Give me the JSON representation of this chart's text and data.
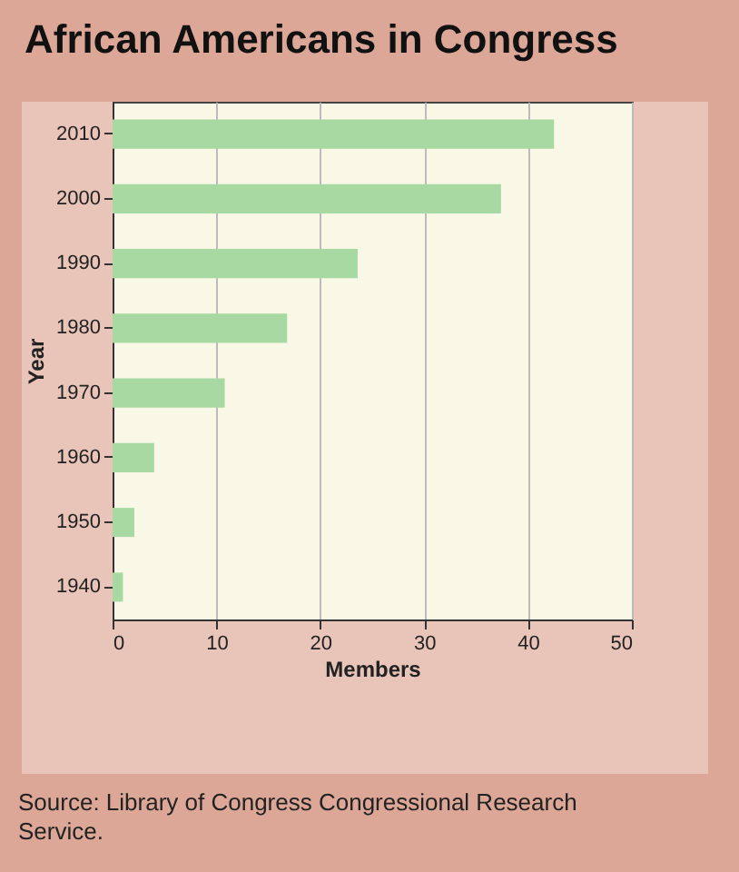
{
  "chart_data": {
    "type": "bar",
    "title": "African Americans in Congress",
    "orientation": "horizontal",
    "categories": [
      "2010",
      "2000",
      "1990",
      "1980",
      "1970",
      "1960",
      "1950",
      "1940"
    ],
    "values": [
      42.5,
      37.4,
      23.6,
      16.8,
      10.8,
      4,
      2.1,
      1
    ],
    "color": "#a9d9a2",
    "xlim": [
      0,
      50
    ],
    "xticks": [
      0,
      10,
      20,
      30,
      40,
      50
    ],
    "grid": "x",
    "xlabel": "Members",
    "ylabel": "Year",
    "annotations": [
      "Source: Library of Congress Congressional Research Service."
    ]
  }
}
